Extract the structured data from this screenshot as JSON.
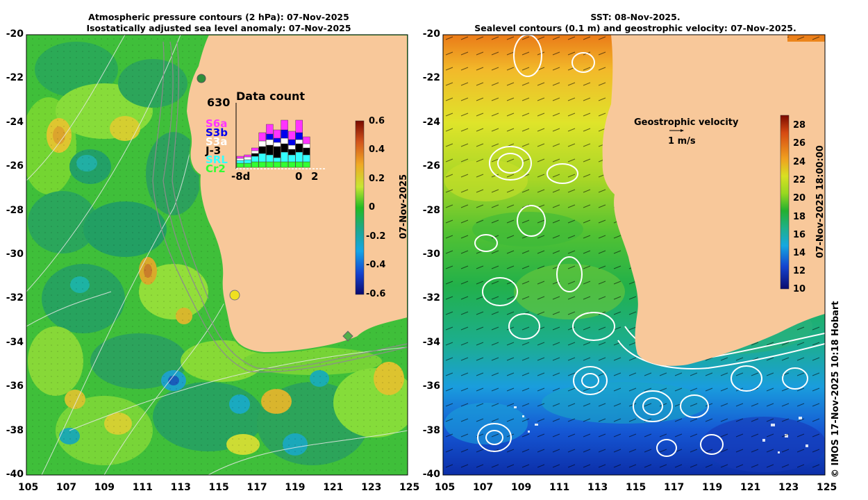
{
  "left_panel": {
    "title_line1": "Atmospheric pressure contours (2 hPa): 07-Nov-2025",
    "title_line2": "Isostatically adjusted sea level anomaly: 07-Nov-2025",
    "colorbar_label": "07-Nov-2025",
    "colorbar_ticks": [
      "0.6",
      "0.4",
      "0.2",
      "0",
      "-0.2",
      "-0.4",
      "-0.6"
    ],
    "inset": {
      "title": "Data count",
      "max_count": "630",
      "x_left": "-8d",
      "x_zero": "0",
      "x_right": "2",
      "satellites": [
        {
          "name": "S6a",
          "color": "#ff33ff"
        },
        {
          "name": "S3b",
          "color": "#0000ee"
        },
        {
          "name": "S3a",
          "color": "#ffffff"
        },
        {
          "name": "J-3",
          "color": "#000000"
        },
        {
          "name": "SRL",
          "color": "#33ffff"
        },
        {
          "name": "Cr2",
          "color": "#33ff33"
        }
      ]
    }
  },
  "right_panel": {
    "title_line1": "SST: 08-Nov-2025.",
    "title_line2": "Sealevel contours (0.1 m) and geostrophic velocity: 07-Nov-2025.",
    "colorbar_label": "07-Nov-2025 18:00:00",
    "colorbar_ticks": [
      "28",
      "26",
      "24",
      "22",
      "20",
      "18",
      "16",
      "14",
      "12",
      "10"
    ],
    "velocity_legend_title": "Geostrophic velocity",
    "velocity_legend_scale": "1 m/s"
  },
  "axes": {
    "x_ticks": [
      "105",
      "107",
      "109",
      "111",
      "113",
      "115",
      "117",
      "119",
      "121",
      "123",
      "125"
    ],
    "y_ticks": [
      "-20",
      "-22",
      "-24",
      "-26",
      "-28",
      "-30",
      "-32",
      "-34",
      "-36",
      "-38",
      "-40"
    ]
  },
  "credit": "© IMOS 17-Nov-2025 10:18 Hobart"
}
